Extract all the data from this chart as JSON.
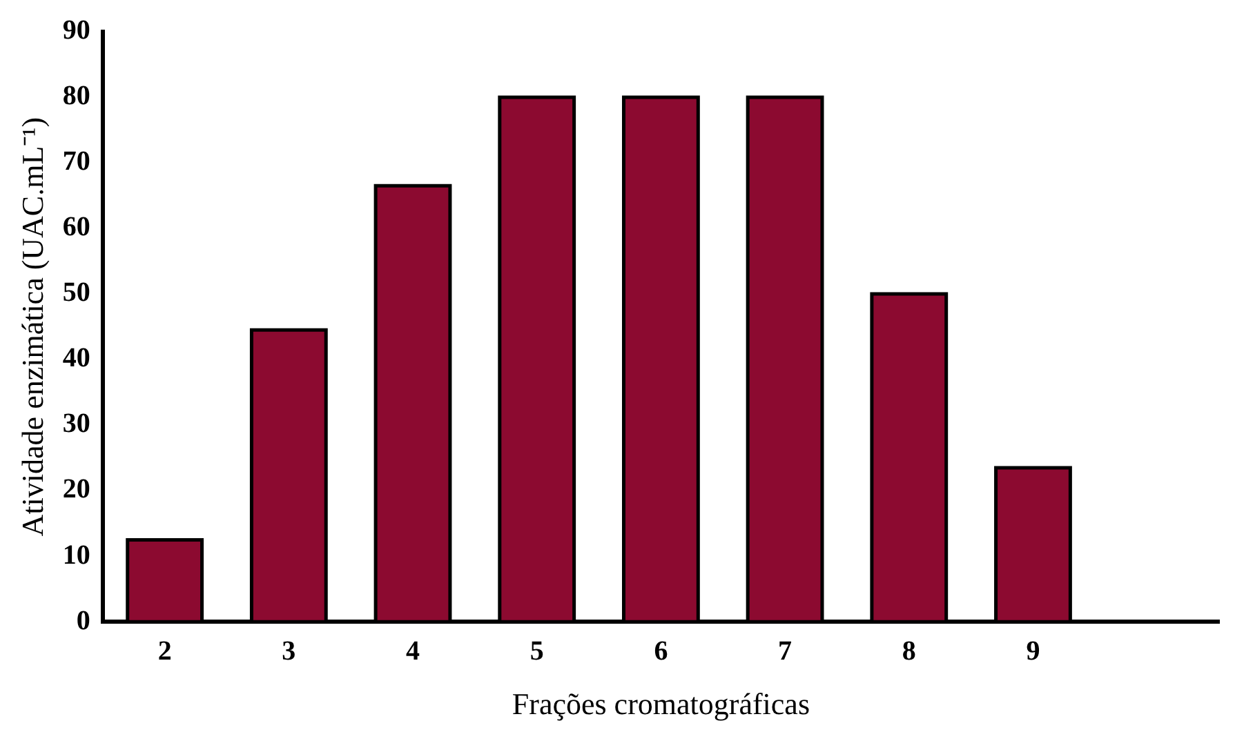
{
  "chart_data": {
    "type": "bar",
    "xlabel": "Frações cromatográficas",
    "ylabel": "Atividade enzimática (UAC.mL⁻¹)",
    "categories": [
      "2",
      "3",
      "4",
      "5",
      "6",
      "7",
      "8",
      "9",
      null
    ],
    "values": [
      12.5,
      44.5,
      66.5,
      80,
      80,
      80,
      50,
      23.5,
      null
    ],
    "color": "#8c0a30",
    "ylim": [
      0,
      90
    ],
    "yticks": [
      0,
      10,
      20,
      30,
      40,
      50,
      60,
      70,
      80,
      90
    ],
    "grid": false,
    "legend": false
  }
}
